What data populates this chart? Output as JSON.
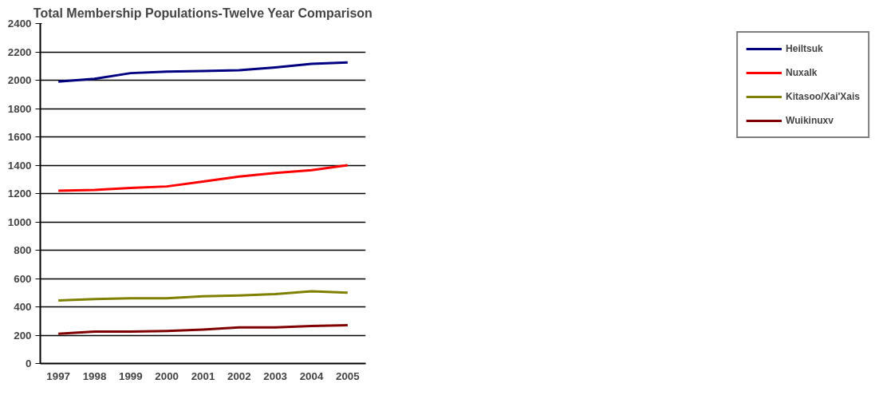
{
  "chart_data": {
    "type": "line",
    "title": "Total Membership Populations-Twelve Year Comparison",
    "categories": [
      "1997",
      "1998",
      "1999",
      "2000",
      "2001",
      "2002",
      "2003",
      "2004",
      "2005"
    ],
    "series": [
      {
        "name": "Heiltsuk",
        "color": "#000080",
        "values": [
          1990,
          2010,
          2050,
          2060,
          2065,
          2070,
          2090,
          2115,
          2125
        ]
      },
      {
        "name": "Nuxalk",
        "color": "#ff0000",
        "values": [
          1220,
          1225,
          1240,
          1250,
          1285,
          1320,
          1345,
          1365,
          1400
        ]
      },
      {
        "name": "Kitasoo/Xai'Xais",
        "color": "#808000",
        "values": [
          445,
          455,
          460,
          460,
          475,
          480,
          490,
          510,
          500
        ]
      },
      {
        "name": "Wuikinuxv",
        "color": "#800000",
        "values": [
          210,
          225,
          225,
          230,
          240,
          255,
          255,
          265,
          270
        ]
      }
    ],
    "ylim": [
      0,
      2400
    ],
    "yticks": [
      0,
      200,
      400,
      600,
      800,
      1000,
      1200,
      1400,
      1600,
      1800,
      2000,
      2200,
      2400
    ],
    "grid": "y",
    "legend": "right",
    "marker": "none",
    "line_style": "solid"
  }
}
